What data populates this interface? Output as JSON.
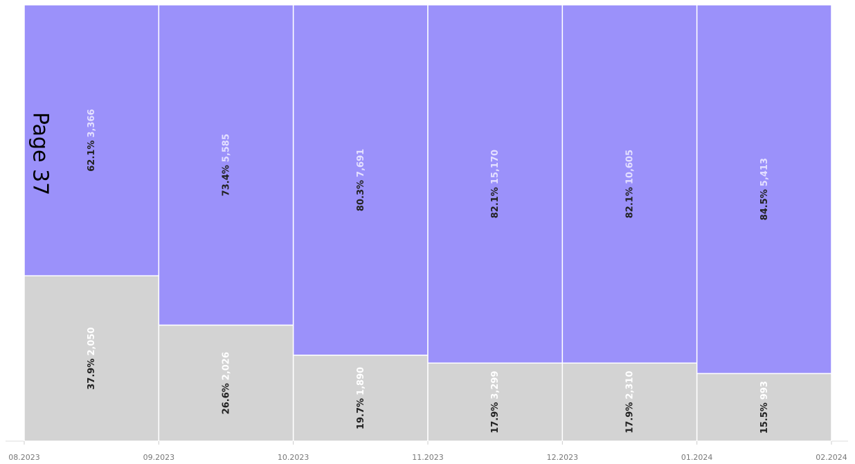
{
  "chart_data": {
    "type": "mekko",
    "annotation": "Page 37",
    "xticks": [
      "08.2023",
      "09.2023",
      "10.2023",
      "11.2023",
      "12.2023",
      "01.2024",
      "02.2024"
    ],
    "series": [
      {
        "color": "#d3d3d3",
        "values": [
          37.9,
          26.6,
          19.7,
          17.9,
          17.9,
          15.5
        ],
        "value_labels": [
          "37.9%",
          "26.6%",
          "19.7%",
          "17.9%",
          "17.9%",
          "15.5%"
        ],
        "counts": [
          2050,
          2026,
          1890,
          3299,
          2310,
          993
        ],
        "count_labels": [
          "2,050",
          "2,026",
          "1,890",
          "3,299",
          "2,310",
          "993"
        ]
      },
      {
        "color": "#9b91fa",
        "values": [
          62.1,
          73.4,
          80.3,
          82.1,
          82.1,
          84.5
        ],
        "value_labels": [
          "62.1%",
          "73.4%",
          "80.3%",
          "82.1%",
          "82.1%",
          "84.5%"
        ],
        "counts": [
          3366,
          5585,
          7691,
          15170,
          10605,
          5413
        ],
        "count_labels": [
          "3,366",
          "5,585",
          "7,691",
          "15,170",
          "10,605",
          "5,413"
        ]
      }
    ]
  }
}
